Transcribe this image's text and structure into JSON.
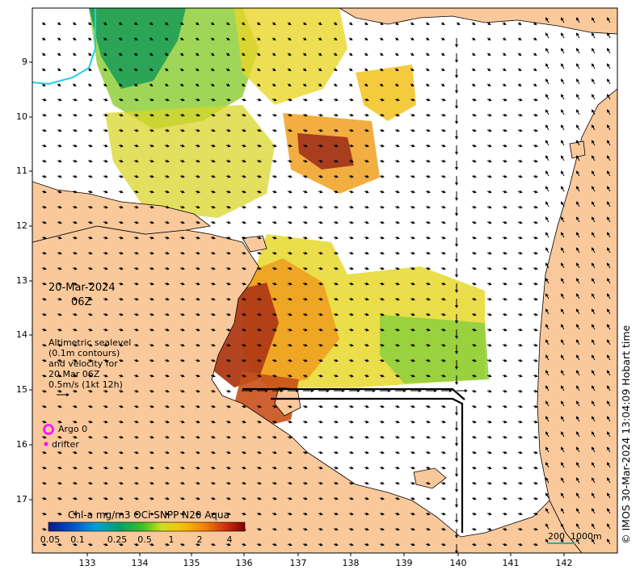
{
  "map": {
    "date": "20-Mar-2024",
    "time": "06Z",
    "info_lines": [
      "Altimetric sealevel",
      "(0.1m contours)",
      "and velocity for",
      "20 Mar 06Z",
      "0.5m/s (1kt 12h)"
    ],
    "credit": "© IMOS 30-Mar-2024 13:04:09 Hobart time",
    "lat_ticks": [
      "9",
      "10",
      "11",
      "12",
      "13",
      "14",
      "15",
      "16",
      "17"
    ],
    "lon_ticks": [
      "133",
      "134",
      "135",
      "136",
      "137",
      "138",
      "139",
      "140",
      "141",
      "142"
    ],
    "colorbar": {
      "title": "Chl-a mg/m3 OCi SNPP N20 Aqua",
      "ticks": [
        "0.05",
        "0.1",
        "0.25",
        "0.5",
        "1",
        "2",
        "4"
      ]
    },
    "scale": {
      "label_a": "200",
      "label_b": "1000m"
    },
    "legend": {
      "argo": "Argo 0",
      "drifter": "drifter"
    },
    "colors": {
      "land": "#f9c99c",
      "sea": "#ffffff",
      "chl_low": "#1a9c4a",
      "chl_mid": "#e7e020",
      "chl_high": "#9a2a10",
      "argo": "#ff00ff"
    }
  }
}
